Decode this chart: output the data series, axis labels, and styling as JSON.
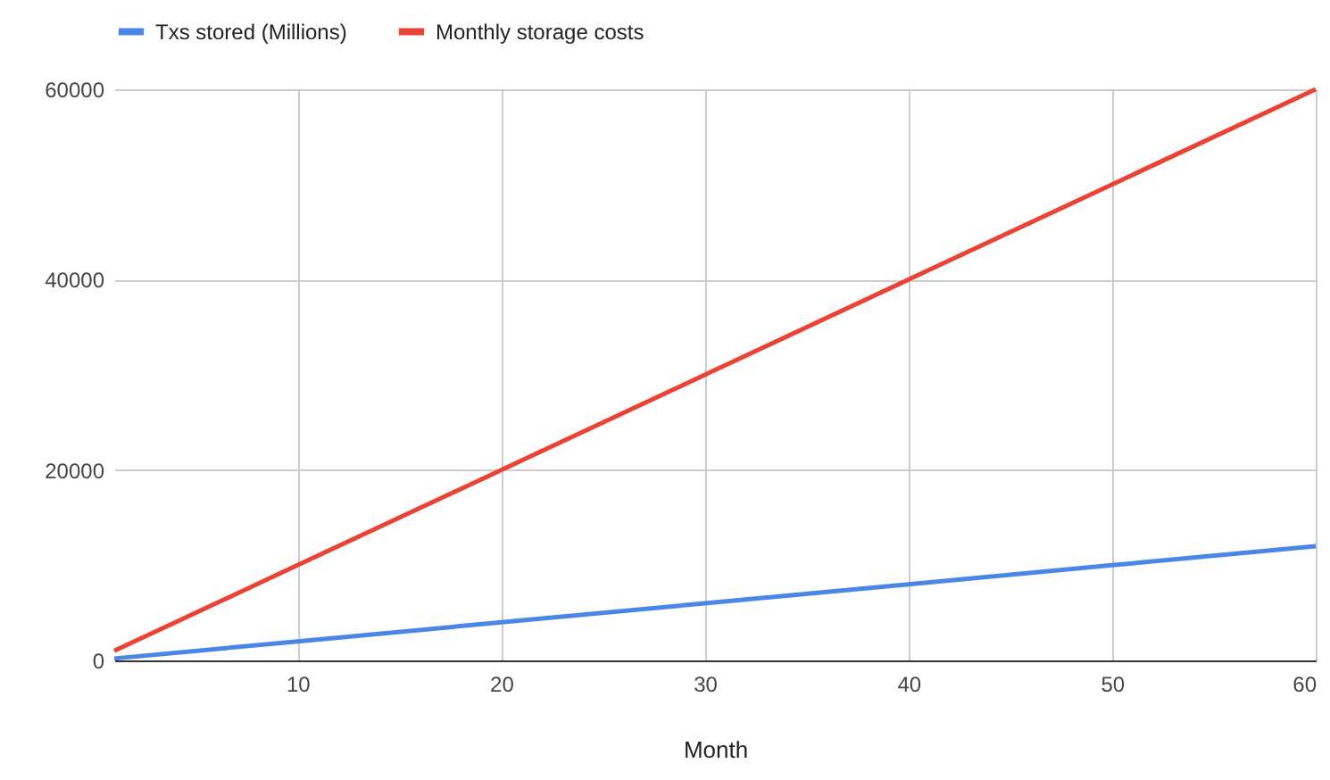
{
  "chart_data": {
    "type": "line",
    "xlabel": "Month",
    "x": [
      1,
      10,
      20,
      30,
      40,
      50,
      60
    ],
    "series": [
      {
        "name": "Txs stored (Millions)",
        "color": "#4a86e8",
        "values": [
          200,
          2000,
          4000,
          6000,
          8000,
          10000,
          12000
        ]
      },
      {
        "name": "Monthly storage costs",
        "color": "#ea4335",
        "values": [
          1000,
          10000,
          20000,
          30000,
          40000,
          50000,
          60000
        ]
      }
    ],
    "xlim": [
      1,
      60
    ],
    "xticks": [
      10,
      20,
      30,
      40,
      50,
      60
    ],
    "ylim": [
      0,
      60000
    ],
    "yticks": [
      0,
      20000,
      40000,
      60000
    ],
    "grid": true,
    "legend": "top",
    "marker": "none",
    "line_style": "solid"
  }
}
